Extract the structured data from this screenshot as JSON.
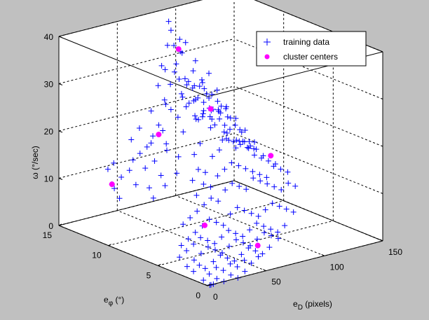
{
  "chart_data": {
    "type": "scatter",
    "axes": {
      "x": {
        "label": "e_D (pixels)",
        "label_main": "e",
        "label_sub": "D",
        "label_rest": " (pixels)",
        "range": [
          0,
          150
        ],
        "ticks": [
          0,
          50,
          100,
          150
        ],
        "tick_labels": [
          "0",
          "50",
          "100",
          "150"
        ]
      },
      "y": {
        "label": "e_φ (°)",
        "label_main": "e",
        "label_sub": "φ",
        "label_rest": " (°)",
        "range": [
          0,
          15
        ],
        "ticks": [
          0,
          5,
          10,
          15
        ],
        "tick_labels": [
          "0",
          "5",
          "10",
          "15"
        ]
      },
      "z": {
        "label": "ω (°/sec)",
        "range": [
          0,
          40
        ],
        "ticks": [
          0,
          10,
          20,
          30,
          40
        ],
        "tick_labels": [
          "0",
          "10",
          "20",
          "30",
          "40"
        ]
      }
    },
    "grid": true,
    "legend": {
      "placement": "top-right",
      "entries": [
        "training data",
        "cluster centers"
      ]
    },
    "series": [
      {
        "name": "training data",
        "marker": "plus",
        "color": "#0000ff",
        "points": [
          [
            20,
            12,
            10
          ],
          [
            22,
            12,
            9
          ],
          [
            18,
            11,
            8
          ],
          [
            25,
            13,
            12
          ],
          [
            28,
            12,
            11
          ],
          [
            30,
            13,
            13
          ],
          [
            35,
            12,
            12
          ],
          [
            32,
            11,
            10
          ],
          [
            38,
            12,
            14
          ],
          [
            40,
            11,
            13
          ],
          [
            44,
            12,
            15
          ],
          [
            45,
            13,
            17
          ],
          [
            48,
            11,
            14
          ],
          [
            50,
            12,
            16
          ],
          [
            52,
            13,
            19
          ],
          [
            55,
            12,
            18
          ],
          [
            58,
            11,
            17
          ],
          [
            60,
            12,
            20
          ],
          [
            62,
            13,
            22
          ],
          [
            64,
            10,
            20
          ],
          [
            66,
            12,
            24
          ],
          [
            68,
            13,
            27
          ],
          [
            70,
            12,
            28
          ],
          [
            72,
            11,
            26
          ],
          [
            74,
            13,
            30
          ],
          [
            75,
            12,
            32
          ],
          [
            76,
            13,
            35
          ],
          [
            78,
            12,
            37
          ],
          [
            79,
            13,
            38
          ],
          [
            80,
            12,
            34
          ],
          [
            81,
            11,
            31
          ],
          [
            82,
            13,
            29
          ],
          [
            84,
            12,
            27
          ],
          [
            85,
            11,
            25
          ],
          [
            86,
            12,
            23
          ],
          [
            88,
            13,
            24
          ],
          [
            89,
            12,
            26
          ],
          [
            90,
            11,
            22
          ],
          [
            91,
            12,
            20
          ],
          [
            92,
            13,
            21
          ],
          [
            94,
            12,
            19
          ],
          [
            96,
            11,
            18
          ],
          [
            98,
            12,
            20
          ],
          [
            100,
            13,
            22
          ],
          [
            101,
            12,
            24
          ],
          [
            103,
            11,
            21
          ],
          [
            104,
            12,
            19
          ],
          [
            106,
            13,
            18
          ],
          [
            108,
            12,
            17
          ],
          [
            110,
            11,
            16
          ],
          [
            112,
            12,
            18
          ],
          [
            114,
            13,
            17
          ],
          [
            116,
            12,
            15
          ],
          [
            118,
            11,
            14
          ],
          [
            120,
            12,
            13
          ],
          [
            123,
            13,
            12
          ],
          [
            126,
            12,
            11
          ],
          [
            130,
            11,
            12
          ],
          [
            60,
            10,
            15
          ],
          [
            65,
            9,
            16
          ],
          [
            70,
            9,
            18
          ],
          [
            75,
            10,
            22
          ],
          [
            78,
            9,
            25
          ],
          [
            82,
            10,
            28
          ],
          [
            85,
            9,
            26
          ],
          [
            88,
            10,
            23
          ],
          [
            92,
            9,
            24
          ],
          [
            96,
            10,
            22
          ],
          [
            100,
            9,
            20
          ],
          [
            104,
            10,
            18
          ],
          [
            108,
            9,
            16
          ],
          [
            112,
            10,
            15
          ],
          [
            116,
            9,
            14
          ],
          [
            120,
            10,
            13
          ],
          [
            124,
            9,
            12
          ],
          [
            50,
            9,
            13
          ],
          [
            45,
            10,
            12
          ],
          [
            40,
            9,
            11
          ],
          [
            35,
            10,
            10
          ],
          [
            30,
            9,
            9
          ],
          [
            55,
            8,
            12
          ],
          [
            60,
            8,
            14
          ],
          [
            66,
            8,
            13
          ],
          [
            72,
            8,
            16
          ],
          [
            78,
            8,
            17
          ],
          [
            84,
            8,
            19
          ],
          [
            90,
            8,
            18
          ],
          [
            96,
            8,
            17
          ],
          [
            102,
            8,
            16
          ],
          [
            108,
            8,
            14
          ],
          [
            114,
            8,
            13
          ],
          [
            120,
            8,
            12
          ],
          [
            126,
            8,
            11
          ],
          [
            50,
            7,
            10
          ],
          [
            56,
            7,
            12
          ],
          [
            62,
            7,
            11
          ],
          [
            68,
            7,
            13
          ],
          [
            74,
            7,
            14
          ],
          [
            80,
            7,
            15
          ],
          [
            86,
            7,
            14
          ],
          [
            92,
            7,
            13
          ],
          [
            98,
            7,
            12
          ],
          [
            104,
            7,
            11
          ],
          [
            110,
            7,
            10
          ],
          [
            116,
            7,
            12
          ],
          [
            122,
            7,
            11
          ],
          [
            128,
            7,
            10
          ],
          [
            30,
            6,
            6
          ],
          [
            36,
            6,
            7
          ],
          [
            42,
            6,
            8
          ],
          [
            48,
            6,
            9
          ],
          [
            54,
            6,
            10
          ],
          [
            60,
            6,
            9
          ],
          [
            66,
            6,
            11
          ],
          [
            72,
            6,
            12
          ],
          [
            78,
            6,
            11
          ],
          [
            84,
            6,
            10
          ],
          [
            90,
            6,
            12
          ],
          [
            96,
            6,
            11
          ],
          [
            102,
            6,
            10
          ],
          [
            108,
            6,
            9
          ],
          [
            114,
            6,
            8
          ],
          [
            120,
            6,
            9
          ],
          [
            126,
            6,
            8
          ],
          [
            20,
            5,
            3
          ],
          [
            26,
            5,
            4
          ],
          [
            32,
            5,
            5
          ],
          [
            38,
            5,
            6
          ],
          [
            44,
            5,
            7
          ],
          [
            50,
            5,
            6
          ],
          [
            56,
            5,
            5
          ],
          [
            62,
            5,
            7
          ],
          [
            68,
            5,
            8
          ],
          [
            74,
            5,
            7
          ],
          [
            80,
            5,
            6
          ],
          [
            86,
            5,
            5
          ],
          [
            92,
            5,
            6
          ],
          [
            98,
            5,
            7
          ],
          [
            104,
            5,
            6
          ],
          [
            110,
            5,
            5
          ],
          [
            116,
            5,
            4
          ],
          [
            10,
            4,
            2
          ],
          [
            16,
            4,
            3
          ],
          [
            22,
            4,
            4
          ],
          [
            28,
            4,
            5
          ],
          [
            34,
            4,
            4
          ],
          [
            40,
            4,
            3
          ],
          [
            46,
            4,
            4
          ],
          [
            52,
            4,
            5
          ],
          [
            58,
            4,
            4
          ],
          [
            64,
            4,
            3
          ],
          [
            70,
            4,
            4
          ],
          [
            76,
            4,
            5
          ],
          [
            82,
            4,
            4
          ],
          [
            88,
            4,
            3
          ],
          [
            94,
            4,
            2
          ],
          [
            100,
            4,
            3
          ],
          [
            8,
            3,
            1
          ],
          [
            14,
            3,
            2
          ],
          [
            20,
            3,
            3
          ],
          [
            26,
            3,
            4
          ],
          [
            32,
            3,
            3
          ],
          [
            38,
            3,
            2
          ],
          [
            44,
            3,
            3
          ],
          [
            50,
            3,
            4
          ],
          [
            56,
            3,
            3
          ],
          [
            62,
            3,
            2
          ],
          [
            68,
            3,
            3
          ],
          [
            74,
            3,
            4
          ],
          [
            80,
            3,
            3
          ],
          [
            86,
            3,
            2
          ],
          [
            5,
            2,
            1
          ],
          [
            10,
            2,
            2
          ],
          [
            15,
            2,
            1
          ],
          [
            22,
            2,
            2
          ],
          [
            28,
            2,
            3
          ],
          [
            34,
            2,
            2
          ],
          [
            40,
            2,
            1
          ],
          [
            46,
            2,
            2
          ],
          [
            52,
            2,
            3
          ],
          [
            58,
            2,
            2
          ],
          [
            64,
            2,
            1
          ],
          [
            70,
            2,
            2
          ],
          [
            5,
            1,
            0
          ],
          [
            10,
            1,
            1
          ],
          [
            16,
            1,
            2
          ],
          [
            22,
            1,
            1
          ],
          [
            28,
            1,
            2
          ],
          [
            34,
            1,
            1
          ],
          [
            40,
            1,
            2
          ],
          [
            46,
            1,
            1
          ],
          [
            52,
            1,
            2
          ],
          [
            3,
            0,
            0
          ],
          [
            8,
            0,
            1
          ],
          [
            14,
            0,
            0
          ],
          [
            20,
            0,
            1
          ],
          [
            26,
            0,
            0
          ],
          [
            32,
            0,
            1
          ],
          [
            2,
            0,
            0
          ],
          [
            5,
            0,
            0
          ],
          [
            45,
            11,
            18
          ],
          [
            50,
            10,
            17
          ],
          [
            55,
            11,
            20
          ],
          [
            62,
            11,
            24
          ],
          [
            68,
            11,
            22
          ],
          [
            73,
            10,
            26
          ],
          [
            77,
            11,
            29
          ],
          [
            80,
            10,
            30
          ],
          [
            83,
            11,
            33
          ],
          [
            86,
            10,
            31
          ],
          [
            89,
            11,
            28
          ],
          [
            93,
            10,
            27
          ],
          [
            97,
            11,
            25
          ],
          [
            101,
            10,
            23
          ],
          [
            105,
            11,
            22
          ],
          [
            109,
            10,
            20
          ],
          [
            113,
            11,
            19
          ],
          [
            117,
            10,
            17
          ],
          [
            121,
            11,
            16
          ],
          [
            125,
            10,
            14
          ],
          [
            129,
            11,
            13
          ],
          [
            132,
            12,
            12
          ],
          [
            135,
            11,
            11
          ],
          [
            65,
            12,
            25
          ],
          [
            71,
            13,
            31
          ],
          [
            77,
            13,
            40
          ],
          [
            83,
            12,
            36
          ],
          [
            87,
            13,
            33
          ],
          [
            73,
            12,
            36
          ],
          [
            69,
            11,
            30
          ],
          [
            91,
            13,
            27
          ],
          [
            95,
            12,
            26
          ],
          [
            99,
            13,
            25
          ],
          [
            103,
            12,
            23
          ],
          [
            107,
            13,
            21
          ],
          [
            111,
            12,
            20
          ],
          [
            115,
            13,
            19
          ],
          [
            119,
            12,
            18
          ],
          [
            125,
            13,
            15
          ],
          [
            131,
            12,
            14
          ]
        ]
      },
      {
        "name": "cluster centers",
        "marker": "dot",
        "color": "#ff00ff",
        "points": [
          [
            20,
            12,
            10
          ],
          [
            60,
            12,
            18
          ],
          [
            77,
            12,
            35
          ],
          [
            96,
            11,
            22
          ],
          [
            122,
            8,
            13
          ],
          [
            40,
            5,
            6
          ],
          [
            60,
            2,
            3
          ]
        ]
      }
    ]
  }
}
